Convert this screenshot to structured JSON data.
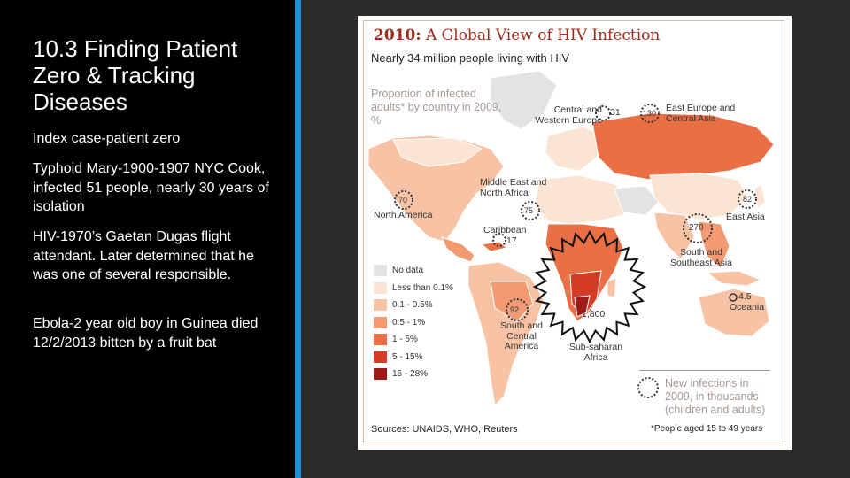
{
  "slide": {
    "title": "10.3 Finding Patient Zero & Tracking Diseases",
    "paragraphs": [
      "Index case-patient zero",
      "Typhoid Mary-1900-1907 NYC Cook, infected 51 people, nearly 30 years of isolation",
      "HIV-1970’s Gaetan Dugas flight attendant.  Later determined that he was one of several responsible.",
      "Ebola-2 year old boy in Guinea died 12/2/2013 bitten by a fruit bat"
    ]
  },
  "figure": {
    "title_year": "2010:",
    "title_rest": " A Global View of HIV Infection",
    "subtitle": "Nearly 34 million people living with HIV",
    "proportion_label": "Proportion of infected adults* by country in 2009, %",
    "regions": [
      {
        "name": "Central and Western Europe",
        "value": "31"
      },
      {
        "name": "East Europe and Central Asia",
        "value": "130"
      },
      {
        "name": "North America",
        "value": "70"
      },
      {
        "name": "Middle East and North Africa",
        "value": "75"
      },
      {
        "name": "East Asia",
        "value": "82"
      },
      {
        "name": "Caribbean",
        "value": "17"
      },
      {
        "name": "South and Southeast Asia",
        "value": "270"
      },
      {
        "name": "Oceania",
        "value": "4.5"
      },
      {
        "name": "South and Central America",
        "value": "92"
      },
      {
        "name": "Sub-saharan Africa",
        "value": "1,800"
      }
    ],
    "legend": [
      {
        "label": "No data",
        "color": "#e3e3e3"
      },
      {
        "label": "Less than 0.1%",
        "color": "#fbe4d4"
      },
      {
        "label": "0.1 - 0.5%",
        "color": "#f7c3a4"
      },
      {
        "label": "0.5 - 1%",
        "color": "#f29b73"
      },
      {
        "label": "1 - 5%",
        "color": "#ea6f45"
      },
      {
        "label": "5 - 15%",
        "color": "#d43c26"
      },
      {
        "label": "15 - 28%",
        "color": "#9e1a16"
      }
    ],
    "new_infections_label": "New infections in 2009, in thousands (children and adults)",
    "sources": "Sources: UNAIDS, WHO, Reuters",
    "footnote": "*People aged 15 to 49 years"
  },
  "colors": {
    "accent_bar": "#1e8fd6",
    "title_red": "#9c2b1b",
    "ocean": "#ffffff"
  }
}
